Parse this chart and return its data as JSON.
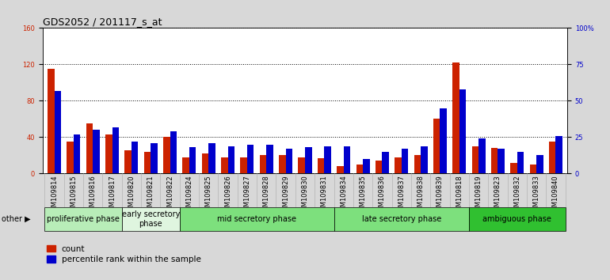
{
  "title": "GDS2052 / 201117_s_at",
  "samples": [
    "GSM109814",
    "GSM109815",
    "GSM109816",
    "GSM109817",
    "GSM109820",
    "GSM109821",
    "GSM109822",
    "GSM109824",
    "GSM109825",
    "GSM109826",
    "GSM109827",
    "GSM109828",
    "GSM109829",
    "GSM109830",
    "GSM109831",
    "GSM109834",
    "GSM109835",
    "GSM109836",
    "GSM109837",
    "GSM109838",
    "GSM109839",
    "GSM109818",
    "GSM109819",
    "GSM109823",
    "GSM109832",
    "GSM109833",
    "GSM109840"
  ],
  "counts": [
    115,
    35,
    55,
    43,
    26,
    24,
    40,
    18,
    22,
    18,
    18,
    20,
    20,
    18,
    17,
    8,
    10,
    14,
    18,
    20,
    60,
    122,
    30,
    28,
    12,
    10,
    35
  ],
  "percentiles": [
    57,
    27,
    30,
    32,
    22,
    21,
    29,
    18,
    21,
    19,
    20,
    20,
    17,
    18,
    19,
    19,
    10,
    15,
    17,
    19,
    45,
    58,
    24,
    17,
    15,
    13,
    26
  ],
  "phases": [
    {
      "label": "proliferative phase",
      "start": 0,
      "end": 4,
      "color": "#b8edb8"
    },
    {
      "label": "early secretory\nphase",
      "start": 4,
      "end": 7,
      "color": "#dff5df"
    },
    {
      "label": "mid secretory phase",
      "start": 7,
      "end": 15,
      "color": "#7de07d"
    },
    {
      "label": "late secretory phase",
      "start": 15,
      "end": 22,
      "color": "#7de07d"
    },
    {
      "label": "ambiguous phase",
      "start": 22,
      "end": 27,
      "color": "#30c030"
    }
  ],
  "bar_color_red": "#cc2200",
  "bar_color_blue": "#0000cc",
  "ylim_left": [
    0,
    160
  ],
  "ylim_right": [
    0,
    100
  ],
  "yticks_left": [
    0,
    40,
    80,
    120,
    160
  ],
  "yticks_right": [
    0,
    25,
    50,
    75,
    100
  ],
  "background_color": "#d8d8d8",
  "plot_bg": "#ffffff",
  "xtick_bg": "#d0d0d0",
  "title_fontsize": 9,
  "tick_fontsize": 6,
  "phase_label_fontsize": 7,
  "bar_width": 0.35,
  "other_label": "other"
}
